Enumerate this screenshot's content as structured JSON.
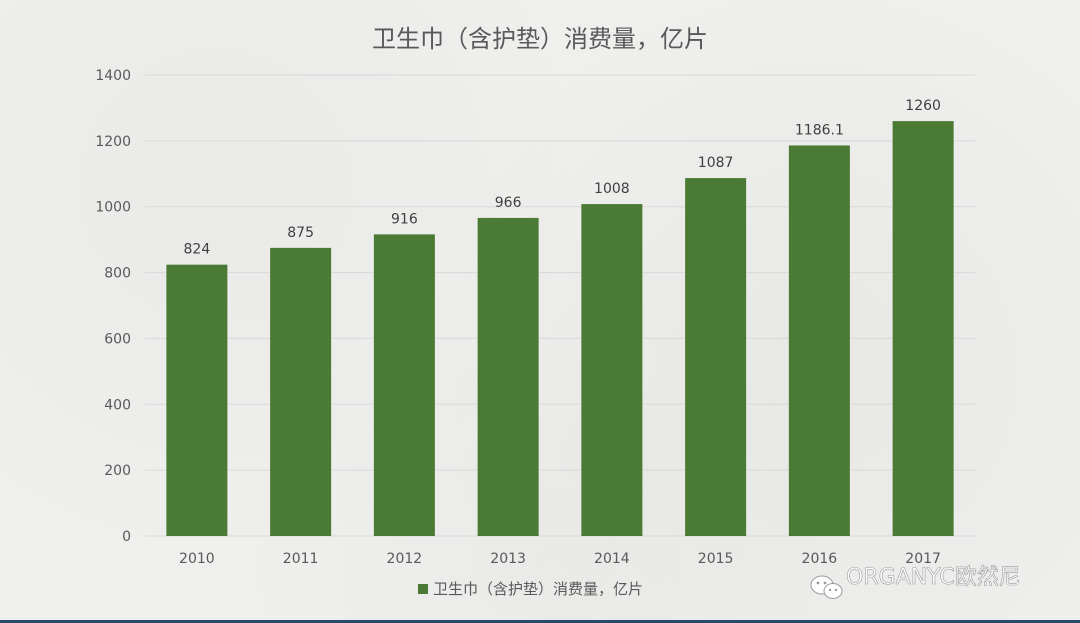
{
  "chart_data": {
    "type": "bar",
    "title": "卫生巾（含护垫）消费量，亿片",
    "categories": [
      "2010",
      "2011",
      "2012",
      "2013",
      "2014",
      "2015",
      "2016",
      "2017"
    ],
    "series": [
      {
        "name": "卫生巾（含护垫）消费量，亿片",
        "values": [
          824,
          875,
          916,
          966,
          1008,
          1087,
          1186.1,
          1260
        ],
        "labels": [
          "824",
          "875",
          "916",
          "966",
          "1008",
          "1087",
          "1186.1",
          "1260"
        ]
      }
    ],
    "ylim": [
      0,
      1400
    ],
    "yticks": [
      0,
      200,
      400,
      600,
      800,
      1000,
      1200,
      1400
    ],
    "xlabel": "",
    "ylabel": "",
    "grid": true,
    "legend": "bottom",
    "colors": {
      "bar": "#4a7a33"
    }
  },
  "watermark": {
    "text": "ORGANYC欧然尼",
    "icon": "wechat-icon"
  }
}
